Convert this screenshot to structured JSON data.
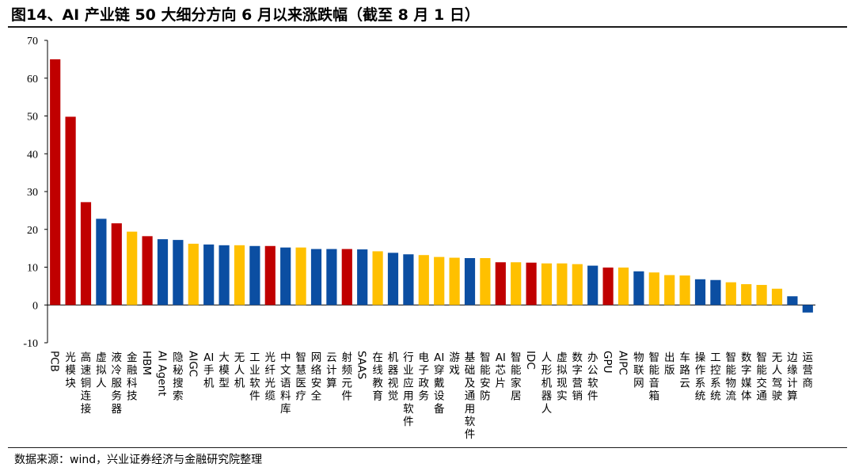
{
  "title": "图14、AI 产业链 50 大细分方向 6 月以来涨跌幅（截至 8 月 1 日）",
  "source": "数据来源：wind，兴业证券经济与金融研究院整理",
  "colors": {
    "red": "#C00000",
    "blue": "#0B4EA2",
    "yellow": "#FFC000"
  },
  "chart_data": {
    "type": "bar",
    "ylim": [
      -10,
      70
    ],
    "yticks": [
      "-10",
      "0",
      "10",
      "20",
      "30",
      "40",
      "50",
      "60",
      "70"
    ],
    "categories": [
      "PCB",
      "光模块",
      "高速铜连接",
      "虚拟人",
      "液冷服务器",
      "金融科技",
      "HBM",
      "AI Agent",
      "隐秘搜索",
      "AIGC",
      "AI手机",
      "大模型",
      "无人机",
      "工业软件",
      "光纤光缆",
      "中文语料库",
      "智慧医疗",
      "网络安全",
      "云计算",
      "射频元件",
      "SAAS",
      "在线教育",
      "机器视觉",
      "行业应用软件",
      "电子政务",
      "AI穿戴设备",
      "游戏",
      "基础及通用软件",
      "智能安防",
      "AI芯片",
      "智能家居",
      "IDC",
      "人形机器人",
      "虚拟现实",
      "数字营销",
      "办公软件",
      "GPU",
      "AIPC",
      "物联网",
      "智能音箱",
      "出版",
      "车路云",
      "操作系统",
      "工控系统",
      "智能物流",
      "数字媒体",
      "智能交通",
      "无人驾驶",
      "边缘计算",
      "运营商"
    ],
    "values": [
      65,
      49.8,
      27.2,
      22.8,
      21.6,
      19.4,
      18.2,
      17.4,
      17.2,
      16.2,
      16.0,
      15.8,
      15.8,
      15.6,
      15.6,
      15.2,
      15.2,
      14.8,
      14.8,
      14.8,
      14.7,
      14.2,
      13.8,
      13.4,
      13.2,
      12.7,
      12.5,
      12.4,
      12.4,
      11.3,
      11.3,
      11.2,
      11.0,
      11.0,
      10.8,
      10.4,
      9.9,
      9.9,
      8.9,
      8.6,
      7.9,
      7.8,
      6.8,
      6.6,
      6.0,
      5.5,
      5.3,
      4.3,
      2.3,
      -2.0
    ],
    "bar_colors": [
      "red",
      "red",
      "red",
      "blue",
      "red",
      "yellow",
      "red",
      "blue",
      "blue",
      "yellow",
      "blue",
      "blue",
      "yellow",
      "blue",
      "red",
      "blue",
      "yellow",
      "blue",
      "blue",
      "red",
      "blue",
      "yellow",
      "blue",
      "blue",
      "yellow",
      "yellow",
      "yellow",
      "blue",
      "yellow",
      "red",
      "yellow",
      "red",
      "yellow",
      "yellow",
      "yellow",
      "blue",
      "red",
      "yellow",
      "blue",
      "yellow",
      "yellow",
      "yellow",
      "blue",
      "blue",
      "yellow",
      "yellow",
      "yellow",
      "yellow",
      "blue",
      "blue"
    ],
    "grid": false,
    "legend": "none"
  }
}
